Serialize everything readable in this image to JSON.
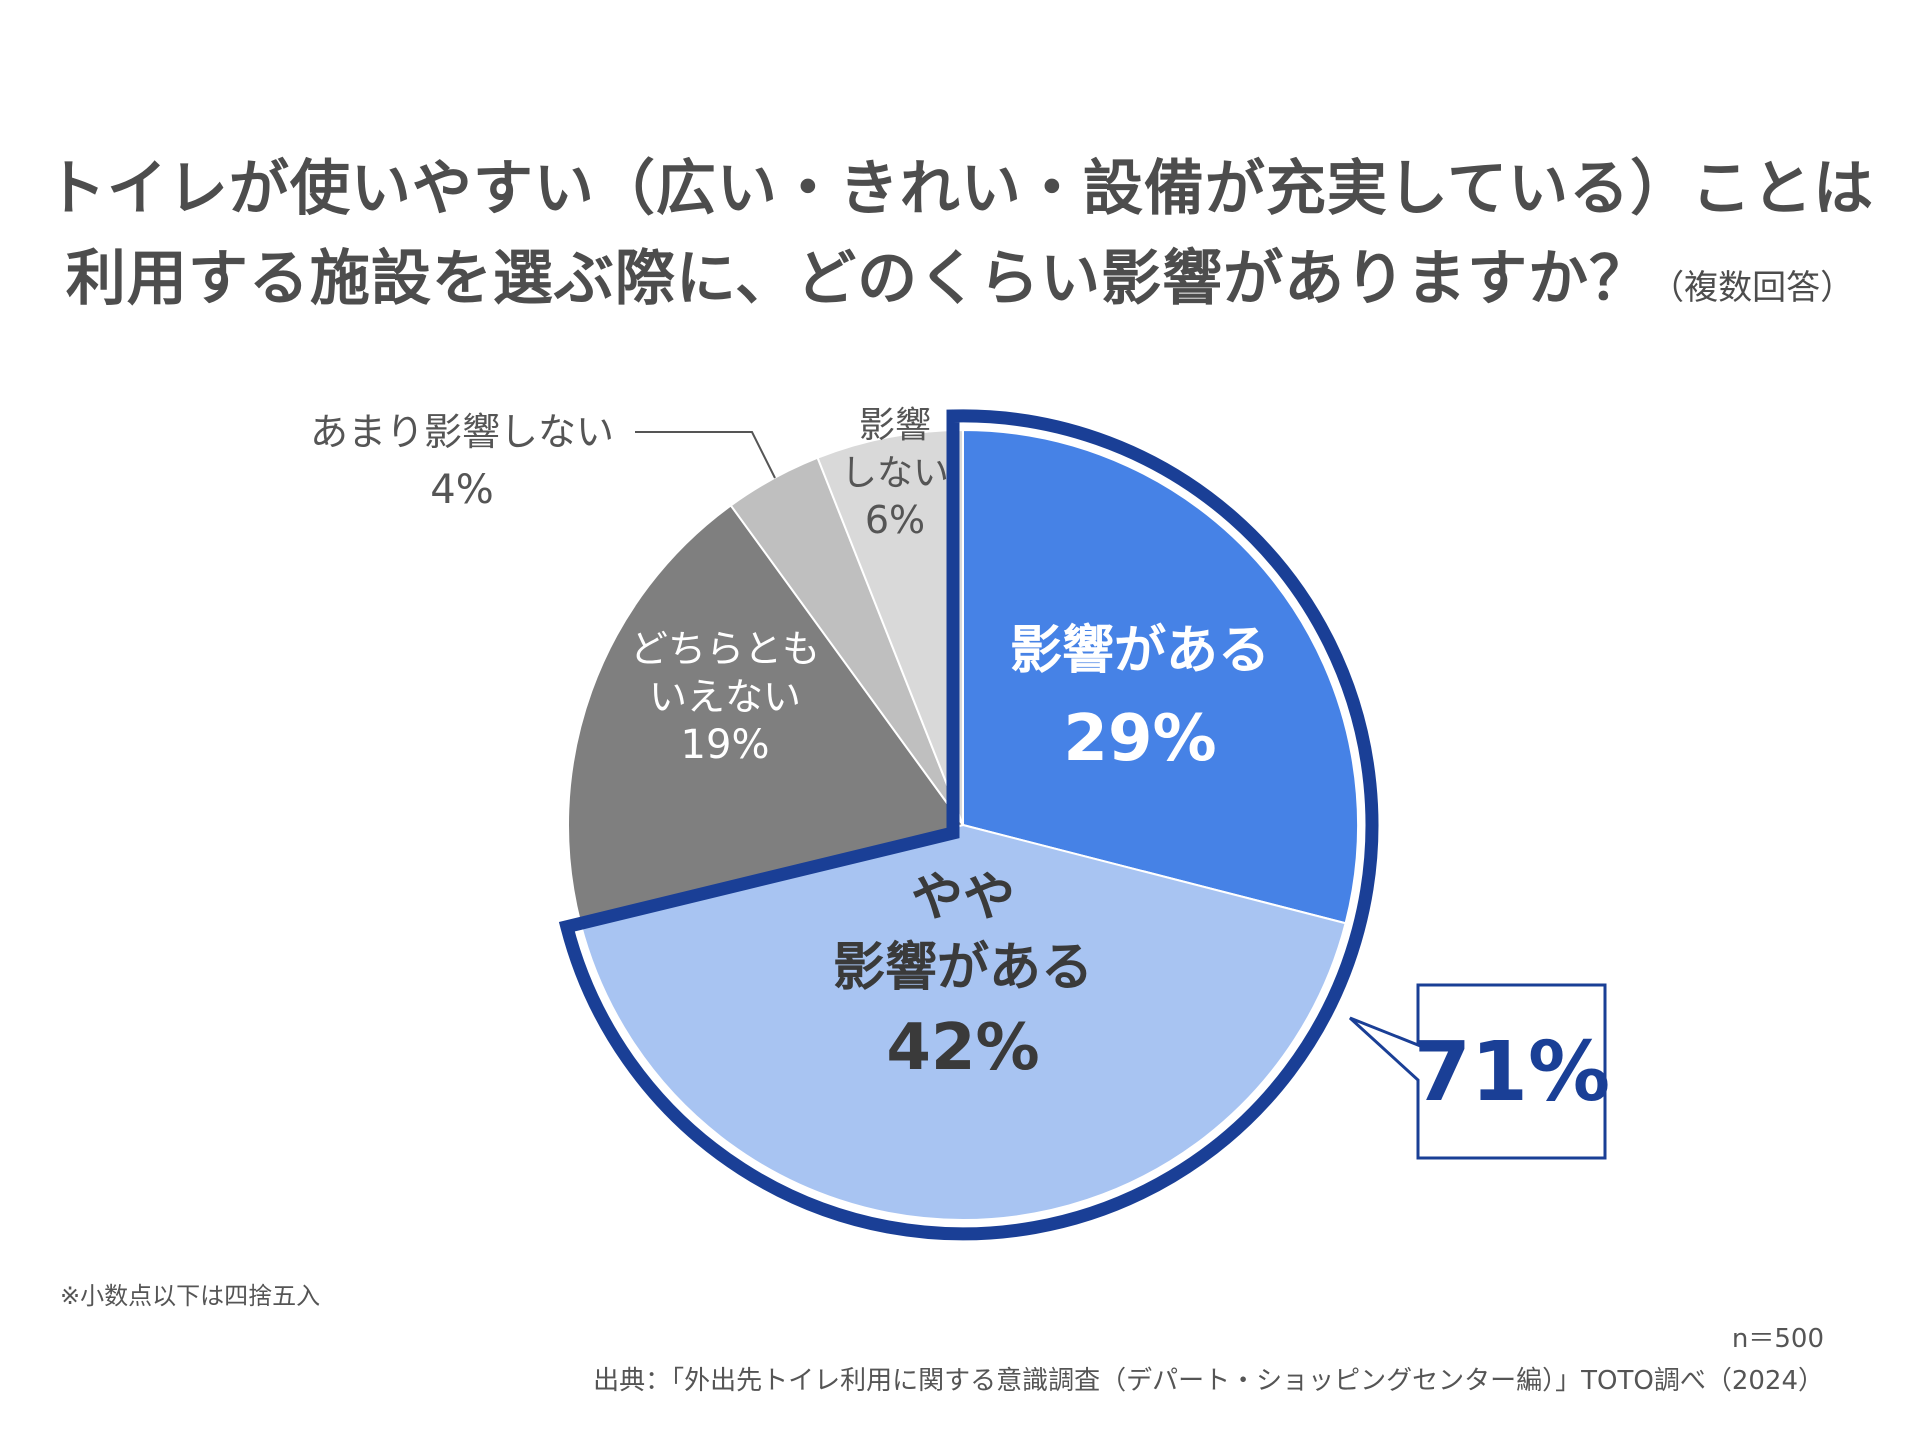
{
  "title_line1": "トイレが使いやすい（広い・きれい・設備が充実している）ことは",
  "title_line2": "利用する施設を選ぶ際に、どのくらい影響がありますか？",
  "title_note": "（複数回答）",
  "chart_data": {
    "type": "pie",
    "slices": [
      {
        "label_lines": [
          "影響がある"
        ],
        "value": 29,
        "value_label": "29%",
        "color": "#4682e6"
      },
      {
        "label_lines": [
          "やや",
          "影響がある"
        ],
        "value": 42,
        "value_label": "42%",
        "color": "#a8c4f2"
      },
      {
        "label_lines": [
          "どちらとも",
          "いえない"
        ],
        "value": 19,
        "value_label": "19%",
        "color": "#7f7f7f"
      },
      {
        "label_lines": [
          "あまり影響しない"
        ],
        "value": 4,
        "value_label": "4%",
        "color": "#bfbfbf"
      },
      {
        "label_lines": [
          "影響",
          "しない"
        ],
        "value": 6,
        "value_label": "6%",
        "color": "#d9d9d9"
      }
    ],
    "highlight_total_label": "71%",
    "highlight_color": "#1a3f96"
  },
  "footnote": "※小数点以下は四捨五入",
  "sample_size": "n＝500",
  "source": "出典：「外出先トイレ利用に関する意識調査（デパート・ショッピングセンター編）」TOTO調べ（2024）"
}
